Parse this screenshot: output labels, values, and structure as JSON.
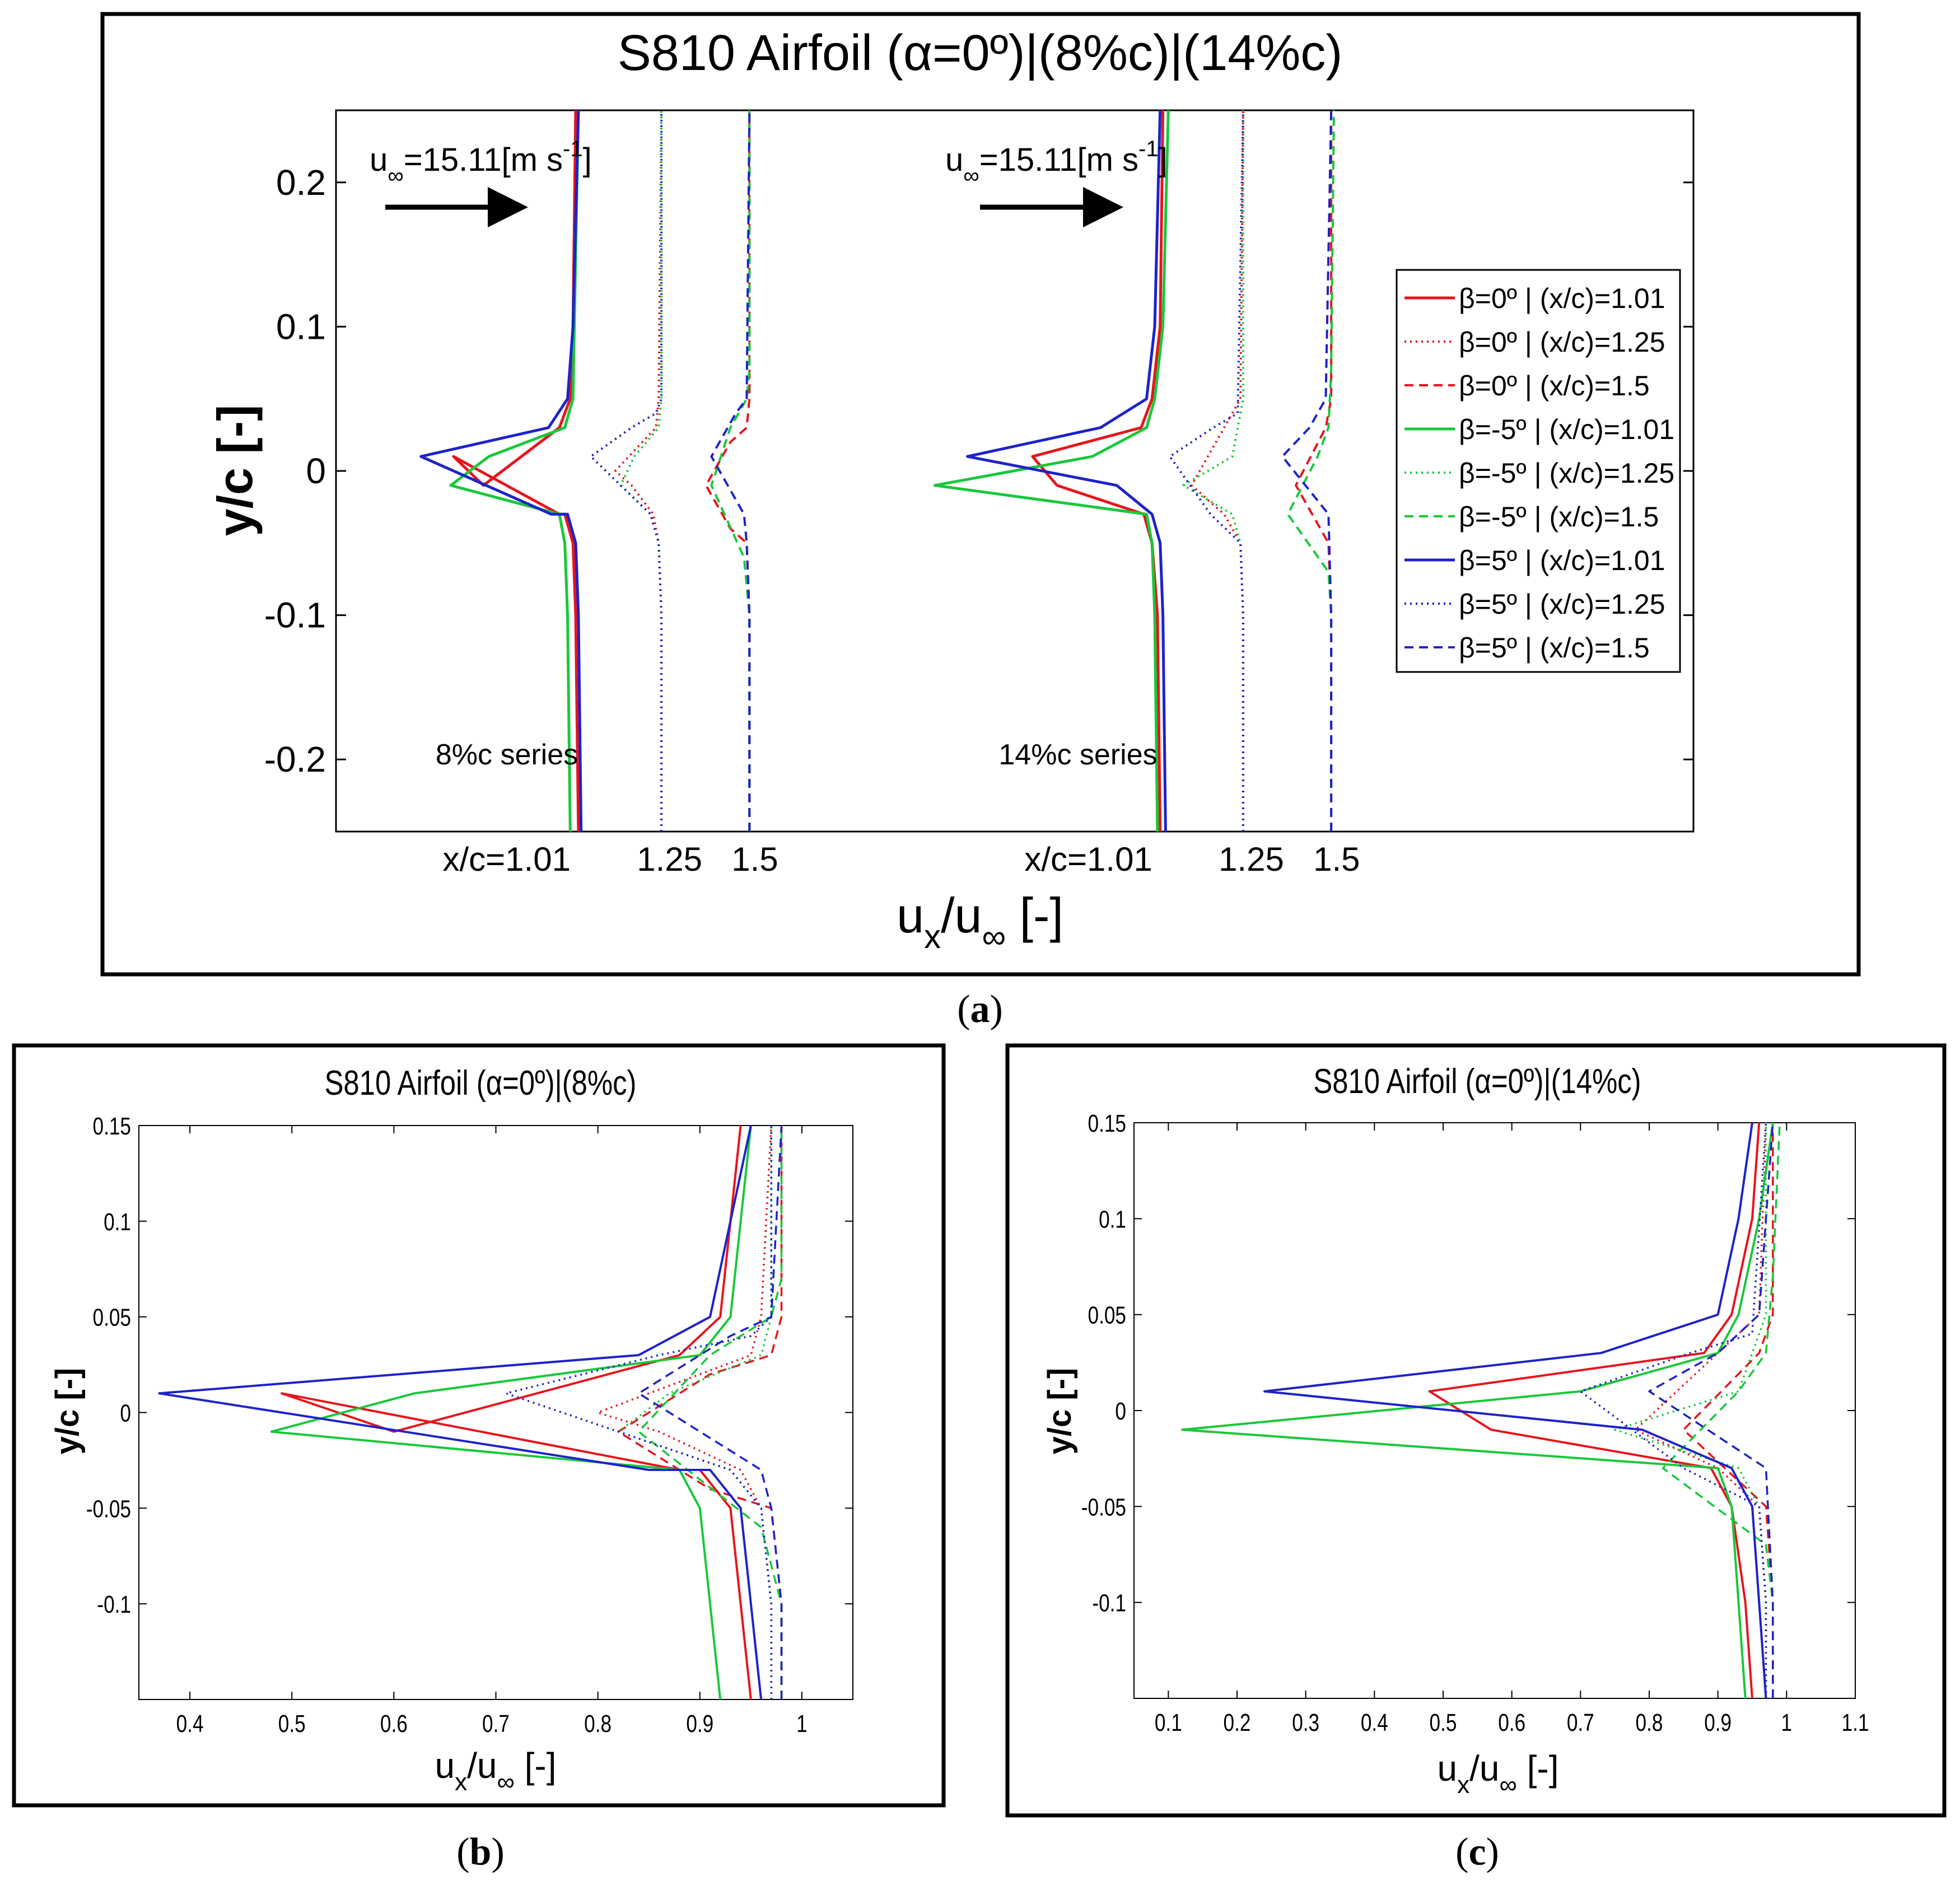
{
  "colors": {
    "red": "#e8141b",
    "green": "#18c83a",
    "blue": "#1d23c9"
  },
  "legend_entries": [
    {
      "label": "β=0º | (x/c)=1.01",
      "color": "red",
      "style": "solid"
    },
    {
      "label": "β=0º | (x/c)=1.25",
      "color": "red",
      "style": "dotted"
    },
    {
      "label": "β=0º | (x/c)=1.5",
      "color": "red",
      "style": "dashed"
    },
    {
      "label": "β=-5º | (x/c)=1.01",
      "color": "green",
      "style": "solid"
    },
    {
      "label": "β=-5º | (x/c)=1.25",
      "color": "green",
      "style": "dotted"
    },
    {
      "label": "β=-5º | (x/c)=1.5",
      "color": "green",
      "style": "dashed"
    },
    {
      "label": "β=5º | (x/c)=1.01",
      "color": "blue",
      "style": "solid"
    },
    {
      "label": "β=5º | (x/c)=1.25",
      "color": "blue",
      "style": "dotted"
    },
    {
      "label": "β=5º | (x/c)=1.5",
      "color": "blue",
      "style": "dashed"
    }
  ],
  "chart_data": [
    {
      "panel": "a",
      "type": "line",
      "title": "S810 Airfoil (α=0º)|(8%c)|(14%c)",
      "ylabel": "y/c [-]",
      "xlabel_main": "u",
      "xlabel_sub1": "x",
      "xlabel_mid": "/u",
      "xlabel_sub2": "∞",
      "xlabel_end": " [-]",
      "ylim": [
        -0.25,
        0.25
      ],
      "yticks": [
        -0.2,
        -0.1,
        0,
        0.1,
        0.2
      ],
      "ytick_labels": [
        "-0.2",
        "-0.1",
        "0",
        "0.1",
        "0.2"
      ],
      "xlim": [
        0,
        1.75
      ],
      "inflow_main": "u",
      "inflow_sub": "∞",
      "inflow_text": "=15.11[m s",
      "inflow_sup": "-1",
      "inflow_close": "]",
      "groups": [
        {
          "label": "8%c series",
          "station_labels": [
            "x/c=1.01",
            "1.25",
            "1.5"
          ],
          "offsets": [
            0.33,
            0.43,
            0.54
          ],
          "label_pos": [
            0.22,
            0.43,
            0.54
          ],
          "series_set": "b",
          "scale": 0.35
        },
        {
          "label": "14%c series",
          "station_labels": [
            "x/c=1.01",
            "1.25",
            "1.5"
          ],
          "offsets": [
            1.08,
            1.18,
            1.29
          ],
          "label_pos": [
            0.97,
            1.18,
            1.29
          ],
          "series_set": "c",
          "scale": 0.35
        }
      ]
    },
    {
      "panel": "b",
      "type": "line",
      "title": "S810 Airfoil (α=0º)|(8%c)",
      "ylabel": "y/c [-]",
      "xlabel_main": "u",
      "xlabel_sub1": "x",
      "xlabel_mid": "/u",
      "xlabel_sub2": "∞",
      "xlabel_end": " [-]",
      "xlim": [
        0.35,
        1.05
      ],
      "ylim": [
        -0.15,
        0.15
      ],
      "xticks": [
        0.4,
        0.5,
        0.6,
        0.7,
        0.8,
        0.9,
        1
      ],
      "xtick_labels": [
        "0.4",
        "0.5",
        "0.6",
        "0.7",
        "0.8",
        "0.9",
        "1"
      ],
      "yticks": [
        -0.1,
        -0.05,
        0,
        0.05,
        0.1,
        0.15
      ],
      "ytick_labels": [
        "-0.1",
        "-0.05",
        "0",
        "0.05",
        "0.1",
        "0.15"
      ],
      "series": [
        {
          "name": "β=0º | (x/c)=1.01",
          "color": "red",
          "style": "solid",
          "x": [
            0.95,
            0.94,
            0.93,
            0.9,
            0.88,
            0.49,
            0.6,
            0.88,
            0.92,
            0.93,
            0.94
          ],
          "y": [
            -0.15,
            -0.1,
            -0.05,
            -0.03,
            -0.03,
            0.01,
            -0.01,
            0.03,
            0.05,
            0.1,
            0.15
          ]
        },
        {
          "name": "β=0º | (x/c)=1.25",
          "color": "red",
          "style": "dotted",
          "x": [
            0.97,
            0.97,
            0.96,
            0.94,
            0.86,
            0.8,
            0.95,
            0.96,
            0.97
          ],
          "y": [
            -0.15,
            -0.1,
            -0.05,
            -0.03,
            -0.01,
            0.0,
            0.03,
            0.05,
            0.15
          ]
        },
        {
          "name": "β=0º | (x/c)=1.5",
          "color": "red",
          "style": "dashed",
          "x": [
            0.98,
            0.98,
            0.97,
            0.91,
            0.82,
            0.91,
            0.97,
            0.98,
            0.98
          ],
          "y": [
            -0.15,
            -0.1,
            -0.05,
            -0.04,
            -0.01,
            0.02,
            0.03,
            0.05,
            0.15
          ]
        },
        {
          "name": "β=-5º | (x/c)=1.01",
          "color": "green",
          "style": "solid",
          "x": [
            0.92,
            0.91,
            0.9,
            0.88,
            0.48,
            0.62,
            0.9,
            0.93,
            0.95
          ],
          "y": [
            -0.15,
            -0.1,
            -0.05,
            -0.03,
            -0.01,
            0.01,
            0.03,
            0.05,
            0.15
          ]
        },
        {
          "name": "β=-5º | (x/c)=1.25",
          "color": "green",
          "style": "dotted",
          "x": [
            0.97,
            0.97,
            0.96,
            0.93,
            0.82,
            0.87,
            0.96,
            0.97,
            0.97
          ],
          "y": [
            -0.15,
            -0.1,
            -0.05,
            -0.03,
            -0.01,
            0.01,
            0.03,
            0.05,
            0.15
          ]
        },
        {
          "name": "β=-5º | (x/c)=1.5",
          "color": "green",
          "style": "dashed",
          "x": [
            0.98,
            0.98,
            0.96,
            0.84,
            0.91,
            0.97,
            0.98,
            0.98
          ],
          "y": [
            -0.15,
            -0.1,
            -0.06,
            -0.01,
            0.03,
            0.05,
            0.07,
            0.15
          ]
        },
        {
          "name": "β=5º | (x/c)=1.01",
          "color": "blue",
          "style": "solid",
          "x": [
            0.96,
            0.95,
            0.94,
            0.91,
            0.85,
            0.37,
            0.84,
            0.91,
            0.93,
            0.95
          ],
          "y": [
            -0.15,
            -0.1,
            -0.05,
            -0.03,
            -0.03,
            0.01,
            0.03,
            0.05,
            0.1,
            0.15
          ]
        },
        {
          "name": "β=5º | (x/c)=1.25",
          "color": "blue",
          "style": "dotted",
          "x": [
            0.97,
            0.97,
            0.96,
            0.93,
            0.71,
            0.86,
            0.95,
            0.97,
            0.97
          ],
          "y": [
            -0.15,
            -0.1,
            -0.05,
            -0.03,
            0.01,
            0.03,
            0.04,
            0.05,
            0.15
          ]
        },
        {
          "name": "β=5º | (x/c)=1.5",
          "color": "blue",
          "style": "dashed",
          "x": [
            0.98,
            0.98,
            0.97,
            0.96,
            0.84,
            0.93,
            0.97,
            0.98
          ],
          "y": [
            -0.15,
            -0.1,
            -0.05,
            -0.03,
            0.01,
            0.04,
            0.05,
            0.15
          ]
        }
      ]
    },
    {
      "panel": "c",
      "type": "line",
      "title": "S810 Airfoil (α=0º)|(14%c)",
      "ylabel": "y/c [-]",
      "xlabel_main": "u",
      "xlabel_sub1": "x",
      "xlabel_mid": "/u",
      "xlabel_sub2": "∞",
      "xlabel_end": " [-]",
      "xlim": [
        0.05,
        1.1
      ],
      "ylim": [
        -0.15,
        0.15
      ],
      "xticks": [
        0.1,
        0.2,
        0.3,
        0.4,
        0.5,
        0.6,
        0.7,
        0.8,
        0.9,
        1,
        1.1
      ],
      "xtick_labels": [
        "0.1",
        "0.2",
        "0.3",
        "0.4",
        "0.5",
        "0.6",
        "0.7",
        "0.8",
        "0.9",
        "1",
        "1.1"
      ],
      "yticks": [
        -0.1,
        -0.05,
        0,
        0.05,
        0.1,
        0.15
      ],
      "ytick_labels": [
        "-0.1",
        "-0.05",
        "0",
        "0.05",
        "0.1",
        "0.15"
      ],
      "series": [
        {
          "name": "β=0º | (x/c)=1.01",
          "color": "red",
          "style": "solid",
          "x": [
            0.95,
            0.94,
            0.92,
            0.89,
            0.57,
            0.48,
            0.88,
            0.92,
            0.95,
            0.96
          ],
          "y": [
            -0.15,
            -0.1,
            -0.05,
            -0.03,
            -0.01,
            0.01,
            0.03,
            0.05,
            0.1,
            0.15
          ]
        },
        {
          "name": "β=0º | (x/c)=1.25",
          "color": "red",
          "style": "dotted",
          "x": [
            0.97,
            0.97,
            0.96,
            0.9,
            0.78,
            0.9,
            0.96,
            0.97
          ],
          "y": [
            -0.15,
            -0.1,
            -0.05,
            -0.03,
            -0.01,
            0.03,
            0.05,
            0.15
          ]
        },
        {
          "name": "β=0º | (x/c)=1.5",
          "color": "red",
          "style": "dashed",
          "x": [
            0.98,
            0.98,
            0.97,
            0.85,
            0.96,
            0.98,
            0.98
          ],
          "y": [
            -0.15,
            -0.1,
            -0.05,
            -0.01,
            0.03,
            0.05,
            0.15
          ]
        },
        {
          "name": "β=-5º | (x/c)=1.01",
          "color": "green",
          "style": "solid",
          "x": [
            0.94,
            0.93,
            0.92,
            0.9,
            0.12,
            0.7,
            0.9,
            0.93,
            0.96,
            0.98
          ],
          "y": [
            -0.15,
            -0.1,
            -0.05,
            -0.03,
            -0.01,
            0.01,
            0.03,
            0.05,
            0.1,
            0.15
          ]
        },
        {
          "name": "β=-5º | (x/c)=1.25",
          "color": "green",
          "style": "dotted",
          "x": [
            0.97,
            0.97,
            0.96,
            0.93,
            0.75,
            0.93,
            0.97,
            0.97
          ],
          "y": [
            -0.15,
            -0.1,
            -0.05,
            -0.03,
            -0.01,
            0.01,
            0.05,
            0.15
          ]
        },
        {
          "name": "β=-5º | (x/c)=1.5",
          "color": "green",
          "style": "dashed",
          "x": [
            0.98,
            0.98,
            0.97,
            0.82,
            0.93,
            0.97,
            0.98,
            0.99
          ],
          "y": [
            -0.15,
            -0.1,
            -0.07,
            -0.03,
            0.01,
            0.03,
            0.07,
            0.15
          ]
        },
        {
          "name": "β=5º | (x/c)=1.01",
          "color": "blue",
          "style": "solid",
          "x": [
            0.97,
            0.96,
            0.95,
            0.92,
            0.79,
            0.24,
            0.73,
            0.9,
            0.93,
            0.95
          ],
          "y": [
            -0.15,
            -0.1,
            -0.05,
            -0.03,
            -0.01,
            0.01,
            0.03,
            0.05,
            0.1,
            0.15
          ]
        },
        {
          "name": "β=5º | (x/c)=1.25",
          "color": "blue",
          "style": "dotted",
          "x": [
            0.97,
            0.97,
            0.96,
            0.85,
            0.7,
            0.86,
            0.95,
            0.97
          ],
          "y": [
            -0.15,
            -0.1,
            -0.05,
            -0.03,
            0.01,
            0.03,
            0.04,
            0.15
          ]
        },
        {
          "name": "β=5º | (x/c)=1.5",
          "color": "blue",
          "style": "dashed",
          "x": [
            0.98,
            0.98,
            0.97,
            0.8,
            0.9,
            0.96,
            0.98
          ],
          "y": [
            -0.15,
            -0.1,
            -0.03,
            0.01,
            0.03,
            0.05,
            0.15
          ]
        }
      ]
    }
  ],
  "panel_labels": [
    {
      "open": "(",
      "letter": "a",
      "close": ")"
    },
    {
      "open": "(",
      "letter": "b",
      "close": ")"
    },
    {
      "open": "(",
      "letter": "c",
      "close": ")"
    }
  ]
}
